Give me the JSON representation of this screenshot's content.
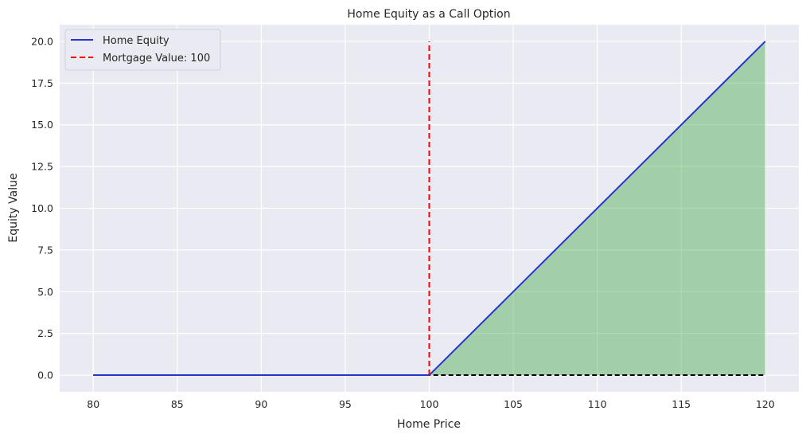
{
  "chart_data": {
    "type": "line",
    "title": "Home Equity as a Call Option",
    "xlabel": "Home Price",
    "ylabel": "Equity Value",
    "xlim": [
      78,
      122
    ],
    "ylim": [
      -1,
      21
    ],
    "xticks": [
      80,
      85,
      90,
      95,
      100,
      105,
      110,
      115,
      120
    ],
    "xtick_labels": [
      "80",
      "85",
      "90",
      "95",
      "100",
      "105",
      "110",
      "115",
      "120"
    ],
    "yticks": [
      0,
      2.5,
      5,
      7.5,
      10,
      12.5,
      15,
      17.5,
      20
    ],
    "ytick_labels": [
      "0.0",
      "2.5",
      "5.0",
      "7.5",
      "10.0",
      "12.5",
      "15.0",
      "17.5",
      "20.0"
    ],
    "grid": true,
    "legend_position": "top-left",
    "series": [
      {
        "name": "Home Equity",
        "color": "#2634cc",
        "style": "solid",
        "x": [
          80,
          100,
          120
        ],
        "y": [
          0,
          0,
          20
        ]
      }
    ],
    "mortgage_line": {
      "name": "Mortgage Value: 100",
      "color": "#ff0000",
      "style": "dashed",
      "x": 100,
      "y_range": [
        0,
        20
      ]
    },
    "zero_line": {
      "color": "#000000",
      "style": "dashed",
      "x_range": [
        80,
        120
      ],
      "y": 0
    },
    "fill": {
      "color": "#4caf50",
      "x": [
        100,
        120
      ],
      "y_top": [
        0,
        20
      ],
      "y_bottom": [
        0,
        0
      ]
    }
  }
}
